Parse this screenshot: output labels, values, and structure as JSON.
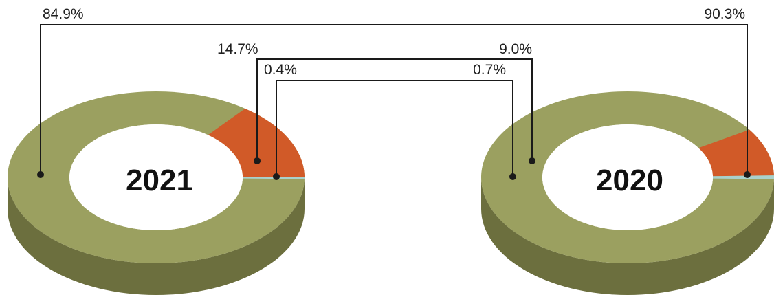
{
  "colors": {
    "green": "#9ba060",
    "green_side": "#6c6f3e",
    "orange": "#d15a28",
    "teal": "#a9d1cc",
    "hole": "#ffffff",
    "line": "#1a1a1a"
  },
  "chart_data": [
    {
      "type": "pie",
      "title": "2021",
      "slices": [
        {
          "label": "84.9%",
          "value": 84.9,
          "color": "#9ba060"
        },
        {
          "label": "14.7%",
          "value": 14.7,
          "color": "#d15a28"
        },
        {
          "label": "0.4%",
          "value": 0.4,
          "color": "#a9d1cc"
        }
      ]
    },
    {
      "type": "pie",
      "title": "2020",
      "slices": [
        {
          "label": "90.3%",
          "value": 90.3,
          "color": "#9ba060"
        },
        {
          "label": "9.0%",
          "value": 9.0,
          "color": "#d15a28"
        },
        {
          "label": "0.7%",
          "value": 0.7,
          "color": "#a9d1cc"
        }
      ]
    }
  ]
}
